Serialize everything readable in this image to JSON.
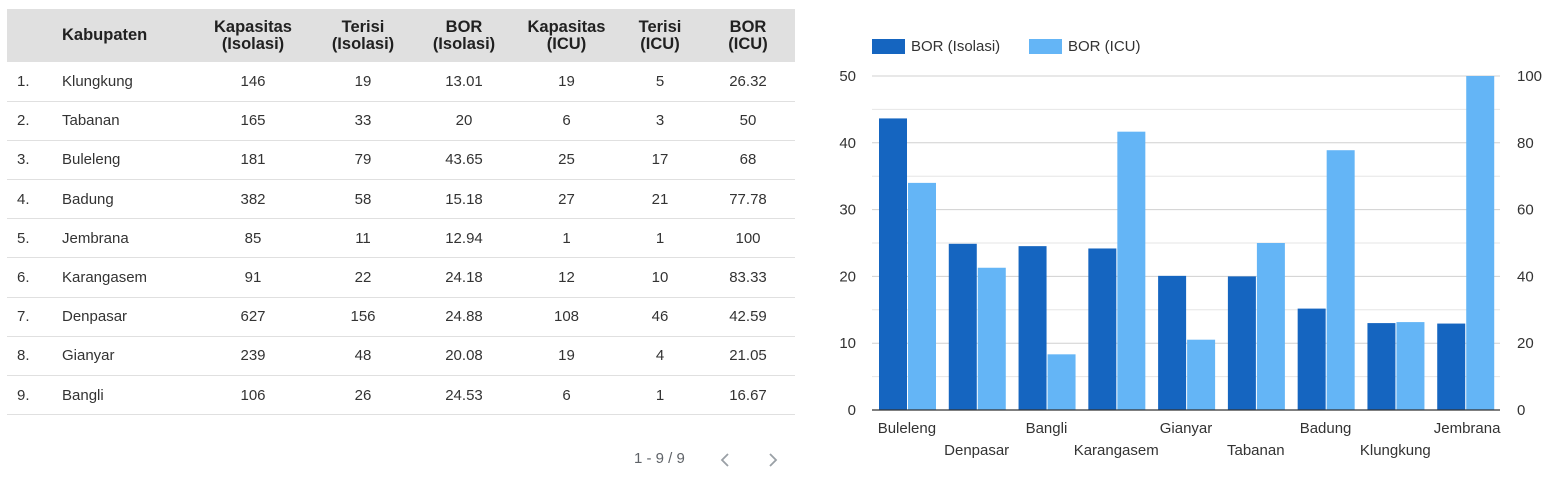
{
  "table": {
    "headers": [
      {
        "line1": "",
        "line2": ""
      },
      {
        "line1": "Kabupaten",
        "line2": ""
      },
      {
        "line1": "Kapasitas",
        "line2": "(Isolasi)"
      },
      {
        "line1": "Terisi",
        "line2": "(Isolasi)"
      },
      {
        "line1": "BOR",
        "line2": "(Isolasi)"
      },
      {
        "line1": "Kapasitas",
        "line2": "(ICU)"
      },
      {
        "line1": "Terisi",
        "line2": "(ICU)"
      },
      {
        "line1": "BOR",
        "line2": "(ICU)"
      }
    ],
    "rows": [
      [
        "1.",
        "Klungkung",
        "146",
        "19",
        "13.01",
        "19",
        "5",
        "26.32"
      ],
      [
        "2.",
        "Tabanan",
        "165",
        "33",
        "20",
        "6",
        "3",
        "50"
      ],
      [
        "3.",
        "Buleleng",
        "181",
        "79",
        "43.65",
        "25",
        "17",
        "68"
      ],
      [
        "4.",
        "Badung",
        "382",
        "58",
        "15.18",
        "27",
        "21",
        "77.78"
      ],
      [
        "5.",
        "Jembrana",
        "85",
        "11",
        "12.94",
        "1",
        "1",
        "100"
      ],
      [
        "6.",
        "Karangasem",
        "91",
        "22",
        "24.18",
        "12",
        "10",
        "83.33"
      ],
      [
        "7.",
        "Denpasar",
        "627",
        "156",
        "24.88",
        "108",
        "46",
        "42.59"
      ],
      [
        "8.",
        "Gianyar",
        "239",
        "48",
        "20.08",
        "19",
        "4",
        "21.05"
      ],
      [
        "9.",
        "Bangli",
        "106",
        "26",
        "24.53",
        "6",
        "1",
        "16.67"
      ]
    ]
  },
  "pager": {
    "range_text": "1 - 9 / 9"
  },
  "chart_data": {
    "type": "bar",
    "categories": [
      "Buleleng",
      "Denpasar",
      "Bangli",
      "Karangasem",
      "Gianyar",
      "Tabanan",
      "Badung",
      "Klungkung",
      "Jembrana"
    ],
    "series": [
      {
        "name": "BOR (Isolasi)",
        "color": "#1565c0",
        "axis": "left",
        "values": [
          43.65,
          24.88,
          24.53,
          24.18,
          20.08,
          20,
          15.18,
          13.01,
          12.94
        ]
      },
      {
        "name": "BOR (ICU)",
        "color": "#64b5f6",
        "axis": "right",
        "values": [
          68,
          42.59,
          16.67,
          83.33,
          21.05,
          50,
          77.78,
          26.32,
          100
        ]
      }
    ],
    "ylim_left": [
      0,
      50
    ],
    "yticks_left": [
      0,
      10,
      20,
      30,
      40,
      50
    ],
    "ylim_right": [
      0,
      100
    ],
    "yticks_right": [
      0,
      20,
      40,
      60,
      80,
      100
    ],
    "grid": true,
    "legend_position": "top-left"
  }
}
